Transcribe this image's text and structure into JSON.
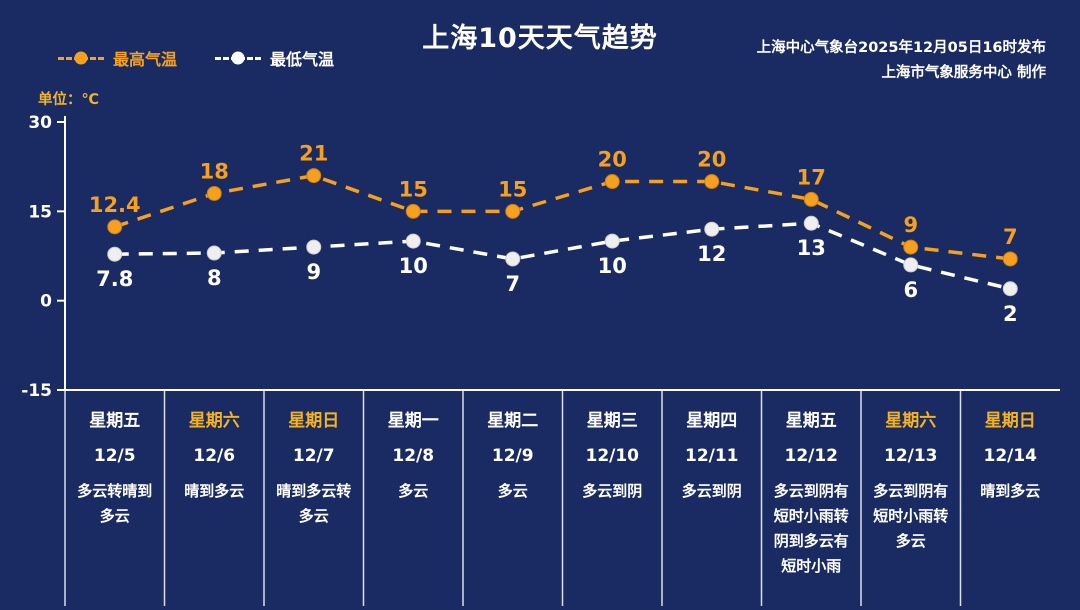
{
  "header": {
    "title": "上海10天天气趋势",
    "publisher_line": "上海中心气象台2025年12月05日16时发布",
    "producer_line": "上海市气象服务中心  制作",
    "unit_label": "单位：℃"
  },
  "legend": {
    "high_label": "最高气温",
    "low_label": "最低气温"
  },
  "colors": {
    "background": "#1a2b63",
    "high": "#f5a01e",
    "high_marker_edge": "#c97f10",
    "low": "#ffffff",
    "low_marker": "#efefef",
    "low_marker_edge": "#cccccc",
    "weekend_text": "#f5b31e",
    "axis": "#ffffff"
  },
  "chart_data": {
    "type": "line",
    "title": "上海10天天气趋势",
    "x": [
      "12/5",
      "12/6",
      "12/7",
      "12/8",
      "12/9",
      "12/10",
      "12/11",
      "12/12",
      "12/13",
      "12/14"
    ],
    "weekday_labels": [
      "星期五",
      "星期六",
      "星期日",
      "星期一",
      "星期二",
      "星期三",
      "星期四",
      "星期五",
      "星期六",
      "星期日"
    ],
    "weekend_flags": [
      false,
      true,
      true,
      false,
      false,
      false,
      false,
      false,
      true,
      true
    ],
    "weather_text": [
      "多云转晴到多云",
      "晴到多云",
      "晴到多云转多云",
      "多云",
      "多云",
      "多云到阴",
      "多云到阴",
      "多云到阴有短时小雨转阴到多云有短时小雨",
      "多云到阴有短时小雨转多云",
      "晴到多云"
    ],
    "series": [
      {
        "name": "最高气温",
        "values": [
          12.4,
          18,
          21,
          15,
          15,
          20,
          20,
          17,
          9,
          7
        ]
      },
      {
        "name": "最低气温",
        "values": [
          7.8,
          8,
          9,
          10,
          7,
          10,
          12,
          13,
          6,
          2
        ]
      }
    ],
    "ylabel": "单位：℃",
    "ylim": [
      -15,
      30
    ],
    "yticks": [
      30,
      15,
      0,
      -15
    ],
    "grid": false,
    "legend_position": "top-left"
  }
}
